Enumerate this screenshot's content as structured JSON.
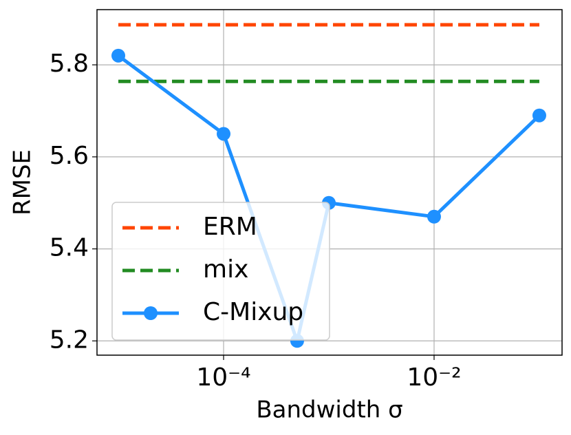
{
  "chart_data": {
    "type": "line",
    "xlabel": "Bandwidth σ",
    "ylabel": "RMSE",
    "xscale": "log",
    "xlim": [
      6.27e-06,
      0.1644
    ],
    "ylim": [
      5.169,
      5.92
    ],
    "xticks": [
      {
        "value": 0.0001,
        "label": "10⁻⁴"
      },
      {
        "value": 0.01,
        "label": "10⁻²"
      }
    ],
    "yticks": [
      5.2,
      5.4,
      5.6,
      5.8
    ],
    "grid": true,
    "legend": "lower left",
    "series": [
      {
        "name": "ERM",
        "color": "#ff4500",
        "dashed": true,
        "x": [
          1e-05,
          0.1
        ],
        "values": [
          5.887,
          5.887
        ]
      },
      {
        "name": "mix",
        "color": "#228b22",
        "dashed": true,
        "x": [
          1e-05,
          0.1
        ],
        "values": [
          5.764,
          5.764
        ]
      },
      {
        "name": "C-Mixup",
        "color": "#1e90ff",
        "markers": true,
        "x": [
          1e-05,
          0.0001,
          0.0005,
          0.001,
          0.01,
          0.1
        ],
        "values": [
          5.82,
          5.65,
          5.2,
          5.5,
          5.47,
          5.69
        ]
      }
    ]
  }
}
